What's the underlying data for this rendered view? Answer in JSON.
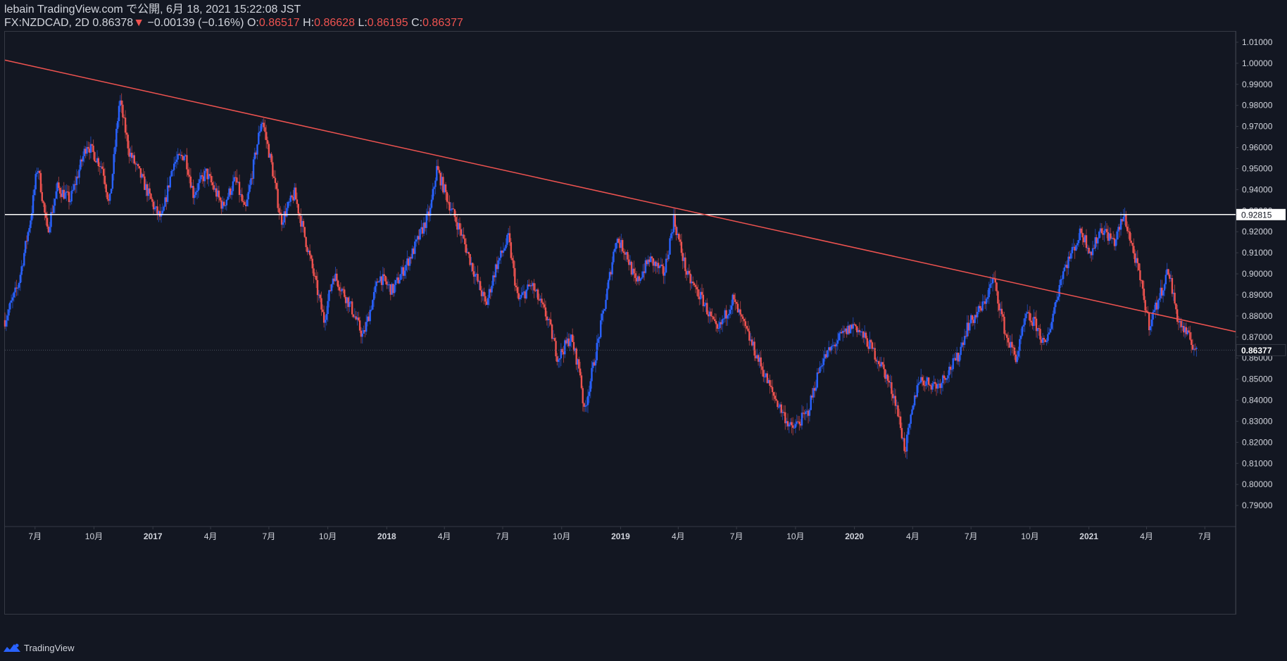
{
  "header": {
    "line1": "lebain TradingView.com で公開, 6月 18, 2021 15:22:08 JST",
    "symbol": "FX:NZDCAD, 2D",
    "last": "0.86378",
    "arrow": "▼",
    "change": "−0.00139 (−0.16%)",
    "o_label": "O:",
    "o_value": "0.86517",
    "h_label": "H:",
    "h_value": "0.86628",
    "l_label": "L:",
    "l_value": "0.86195",
    "c_label": "C:",
    "c_value": "0.86377"
  },
  "footer": {
    "brand": "TradingView",
    "logo_icon": "tradingview-logo-icon"
  },
  "colors": {
    "background": "#131722",
    "up": "#2962ff",
    "down": "#ef5350",
    "trendline": "#ef5350",
    "hline": "#ffffff",
    "axis_text": "#d1d4dc",
    "grid": "#363a45"
  },
  "chart_data": {
    "type": "candlestick",
    "x_axis": {
      "ticks": [
        {
          "label": "7月",
          "date": "2016-07-01"
        },
        {
          "label": "10月",
          "date": "2016-10-01"
        },
        {
          "label": "2017",
          "date": "2017-01-01"
        },
        {
          "label": "4月",
          "date": "2017-04-01"
        },
        {
          "label": "7月",
          "date": "2017-07-01"
        },
        {
          "label": "10月",
          "date": "2017-10-01"
        },
        {
          "label": "2018",
          "date": "2018-01-01"
        },
        {
          "label": "4月",
          "date": "2018-04-01"
        },
        {
          "label": "7月",
          "date": "2018-07-01"
        },
        {
          "label": "10月",
          "date": "2018-10-01"
        },
        {
          "label": "2019",
          "date": "2019-01-01"
        },
        {
          "label": "4月",
          "date": "2019-04-01"
        },
        {
          "label": "7月",
          "date": "2019-07-01"
        },
        {
          "label": "10月",
          "date": "2019-10-01"
        },
        {
          "label": "2020",
          "date": "2020-01-01"
        },
        {
          "label": "4月",
          "date": "2020-04-01"
        },
        {
          "label": "7月",
          "date": "2020-07-01"
        },
        {
          "label": "10月",
          "date": "2020-10-01"
        },
        {
          "label": "2021",
          "date": "2021-01-01"
        },
        {
          "label": "4月",
          "date": "2021-04-01"
        },
        {
          "label": "7月",
          "date": "2021-07-01"
        }
      ],
      "range": [
        "2016-05-15",
        "2021-08-18"
      ]
    },
    "y_axis": {
      "range": [
        0.78,
        1.015
      ],
      "ticks": [
        "0.79000",
        "0.80000",
        "0.81000",
        "0.82000",
        "0.83000",
        "0.84000",
        "0.85000",
        "0.86000",
        "0.87000",
        "0.88000",
        "0.89000",
        "0.90000",
        "0.91000",
        "0.92000",
        "0.93000",
        "0.94000",
        "0.95000",
        "0.96000",
        "0.97000",
        "0.98000",
        "0.99000",
        "1.00000",
        "1.01000"
      ]
    },
    "price_path": [
      [
        "2016-05-15",
        0.878
      ],
      [
        "2016-06-05",
        0.895
      ],
      [
        "2016-06-25",
        0.928
      ],
      [
        "2016-07-05",
        0.952
      ],
      [
        "2016-07-20",
        0.92
      ],
      [
        "2016-08-05",
        0.941
      ],
      [
        "2016-08-25",
        0.935
      ],
      [
        "2016-09-20",
        0.962
      ],
      [
        "2016-10-15",
        0.95
      ],
      [
        "2016-10-25",
        0.932
      ],
      [
        "2016-11-10",
        0.983
      ],
      [
        "2016-11-25",
        0.958
      ],
      [
        "2016-12-15",
        0.945
      ],
      [
        "2017-01-05",
        0.93
      ],
      [
        "2017-01-15",
        0.926
      ],
      [
        "2017-02-01",
        0.952
      ],
      [
        "2017-02-20",
        0.957
      ],
      [
        "2017-03-05",
        0.938
      ],
      [
        "2017-03-25",
        0.948
      ],
      [
        "2017-04-20",
        0.932
      ],
      [
        "2017-05-10",
        0.945
      ],
      [
        "2017-05-25",
        0.929
      ],
      [
        "2017-06-20",
        0.974
      ],
      [
        "2017-07-05",
        0.952
      ],
      [
        "2017-07-20",
        0.925
      ],
      [
        "2017-08-10",
        0.938
      ],
      [
        "2017-09-05",
        0.905
      ],
      [
        "2017-09-25",
        0.878
      ],
      [
        "2017-10-10",
        0.9
      ],
      [
        "2017-11-05",
        0.885
      ],
      [
        "2017-11-25",
        0.87
      ],
      [
        "2017-12-20",
        0.899
      ],
      [
        "2018-01-10",
        0.892
      ],
      [
        "2018-02-10",
        0.91
      ],
      [
        "2018-03-10",
        0.93
      ],
      [
        "2018-03-20",
        0.95
      ],
      [
        "2018-04-10",
        0.932
      ],
      [
        "2018-04-25",
        0.921
      ],
      [
        "2018-05-15",
        0.903
      ],
      [
        "2018-06-05",
        0.885
      ],
      [
        "2018-06-20",
        0.903
      ],
      [
        "2018-07-10",
        0.917
      ],
      [
        "2018-07-25",
        0.887
      ],
      [
        "2018-08-15",
        0.895
      ],
      [
        "2018-09-10",
        0.878
      ],
      [
        "2018-09-25",
        0.86
      ],
      [
        "2018-10-15",
        0.87
      ],
      [
        "2018-10-30",
        0.853
      ],
      [
        "2018-11-05",
        0.834
      ],
      [
        "2018-11-25",
        0.865
      ],
      [
        "2018-12-10",
        0.89
      ],
      [
        "2018-12-25",
        0.917
      ],
      [
        "2019-01-10",
        0.91
      ],
      [
        "2019-01-25",
        0.895
      ],
      [
        "2019-02-15",
        0.907
      ],
      [
        "2019-03-10",
        0.9
      ],
      [
        "2019-03-25",
        0.926
      ],
      [
        "2019-04-15",
        0.899
      ],
      [
        "2019-05-10",
        0.887
      ],
      [
        "2019-06-01",
        0.872
      ],
      [
        "2019-06-25",
        0.888
      ],
      [
        "2019-07-20",
        0.87
      ],
      [
        "2019-08-10",
        0.855
      ],
      [
        "2019-08-25",
        0.844
      ],
      [
        "2019-09-25",
        0.826
      ],
      [
        "2019-10-20",
        0.834
      ],
      [
        "2019-11-10",
        0.858
      ],
      [
        "2019-12-10",
        0.87
      ],
      [
        "2020-01-01",
        0.876
      ],
      [
        "2020-01-25",
        0.866
      ],
      [
        "2020-02-15",
        0.855
      ],
      [
        "2020-03-05",
        0.84
      ],
      [
        "2020-03-20",
        0.816
      ],
      [
        "2020-04-10",
        0.85
      ],
      [
        "2020-05-10",
        0.847
      ],
      [
        "2020-06-10",
        0.86
      ],
      [
        "2020-06-25",
        0.875
      ],
      [
        "2020-07-20",
        0.885
      ],
      [
        "2020-08-05",
        0.898
      ],
      [
        "2020-08-25",
        0.87
      ],
      [
        "2020-09-10",
        0.86
      ],
      [
        "2020-09-25",
        0.88
      ],
      [
        "2020-10-10",
        0.876
      ],
      [
        "2020-10-25",
        0.865
      ],
      [
        "2020-11-20",
        0.9
      ],
      [
        "2020-12-20",
        0.92
      ],
      [
        "2021-01-05",
        0.91
      ],
      [
        "2021-01-20",
        0.922
      ],
      [
        "2021-02-10",
        0.915
      ],
      [
        "2021-02-25",
        0.928
      ],
      [
        "2021-03-20",
        0.9
      ],
      [
        "2021-04-05",
        0.876
      ],
      [
        "2021-04-20",
        0.888
      ],
      [
        "2021-05-05",
        0.902
      ],
      [
        "2021-05-20",
        0.878
      ],
      [
        "2021-06-05",
        0.87
      ],
      [
        "2021-06-18",
        0.8638
      ]
    ],
    "trendline": {
      "start": [
        "2016-05-15",
        1.0015
      ],
      "end": [
        "2021-08-18",
        0.8725
      ]
    },
    "horizontal_line": {
      "value": 0.92815,
      "label": "0.92815"
    },
    "last_price_label": "0.86377",
    "last_price": 0.86377
  }
}
